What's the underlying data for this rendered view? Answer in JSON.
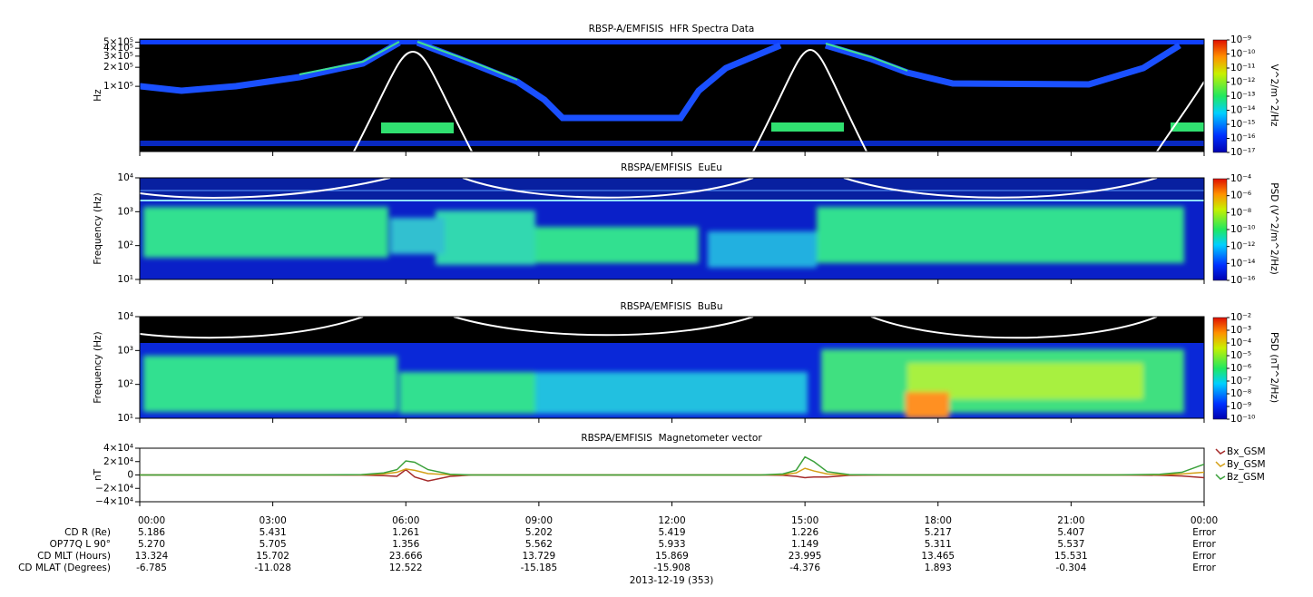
{
  "time_axis": {
    "xlim": [
      0,
      24
    ],
    "xticks": [
      {
        "value": 0,
        "label": "00:00"
      },
      {
        "value": 3,
        "label": "03:00"
      },
      {
        "value": 6,
        "label": "06:00"
      },
      {
        "value": 9,
        "label": "09:00"
      },
      {
        "value": 12,
        "label": "12:00"
      },
      {
        "value": 15,
        "label": "15:00"
      },
      {
        "value": 18,
        "label": "18:00"
      },
      {
        "value": 21,
        "label": "21:00"
      },
      {
        "value": 24,
        "label": "00:00"
      }
    ],
    "date_label": "2013-12-19 (353)"
  },
  "chart_data": [
    {
      "type": "spectrogram",
      "title": "RBSP-A/EMFISIS  HFR Spectra Data",
      "y_label": "Hz",
      "log_y": true,
      "ylim": [
        9300,
        560000
      ],
      "yticks": [
        {
          "value": 100000,
          "label": "1×10⁵"
        },
        {
          "value": 200000,
          "label": "2×10⁵"
        },
        {
          "value": 300000,
          "label": "3×10⁵"
        },
        {
          "value": 400000,
          "label": "4×10⁵"
        },
        {
          "value": 500000,
          "label": "5×10⁵"
        }
      ],
      "colorbar": {
        "label": "V^2/m^2/Hz",
        "log": true,
        "clim": [
          1e-17,
          1e-09
        ],
        "ticks": [
          {
            "value": 1e-09,
            "label": "10⁻⁹"
          },
          {
            "value": 1e-10,
            "label": "10⁻¹⁰"
          },
          {
            "value": 1e-11,
            "label": "10⁻¹¹"
          },
          {
            "value": 1e-12,
            "label": "10⁻¹²"
          },
          {
            "value": 1e-13,
            "label": "10⁻¹³"
          },
          {
            "value": 1e-14,
            "label": "10⁻¹⁴"
          },
          {
            "value": 1e-15,
            "label": "10⁻¹⁵"
          },
          {
            "value": 1e-16,
            "label": "10⁻¹⁶"
          },
          {
            "value": 1e-17,
            "label": "10⁻¹⁷"
          }
        ]
      }
    },
    {
      "type": "spectrogram",
      "title": "RBSPA/EMFISIS  EuEu",
      "y_label": "Frequency (Hz)",
      "log_y": true,
      "ylim": [
        10,
        10000
      ],
      "yticks": [
        {
          "value": 10,
          "label": "10¹"
        },
        {
          "value": 100,
          "label": "10²"
        },
        {
          "value": 1000,
          "label": "10³"
        },
        {
          "value": 10000,
          "label": "10⁴"
        }
      ],
      "colorbar": {
        "label": "PSD (V^2/m^2/Hz)",
        "log": true,
        "clim": [
          1e-16,
          0.0001
        ],
        "ticks": [
          {
            "value": 0.0001,
            "label": "10⁻⁴"
          },
          {
            "value": 1e-06,
            "label": "10⁻⁶"
          },
          {
            "value": 1e-08,
            "label": "10⁻⁸"
          },
          {
            "value": 1e-10,
            "label": "10⁻¹⁰"
          },
          {
            "value": 1e-12,
            "label": "10⁻¹²"
          },
          {
            "value": 1e-14,
            "label": "10⁻¹⁴"
          },
          {
            "value": 1e-16,
            "label": "10⁻¹⁶"
          }
        ]
      }
    },
    {
      "type": "spectrogram",
      "title": "RBSPA/EMFISIS  BuBu",
      "y_label": "Frequency (Hz)",
      "log_y": true,
      "ylim": [
        10,
        10000
      ],
      "yticks": [
        {
          "value": 10,
          "label": "10¹"
        },
        {
          "value": 100,
          "label": "10²"
        },
        {
          "value": 1000,
          "label": "10³"
        },
        {
          "value": 10000,
          "label": "10⁴"
        }
      ],
      "colorbar": {
        "label": "PSD (nT^2/Hz)",
        "log": true,
        "clim": [
          1e-10,
          0.01
        ],
        "ticks": [
          {
            "value": 0.01,
            "label": "10⁻²"
          },
          {
            "value": 0.001,
            "label": "10⁻³"
          },
          {
            "value": 0.0001,
            "label": "10⁻⁴"
          },
          {
            "value": 1e-05,
            "label": "10⁻⁵"
          },
          {
            "value": 1e-06,
            "label": "10⁻⁶"
          },
          {
            "value": 1e-07,
            "label": "10⁻⁷"
          },
          {
            "value": 1e-08,
            "label": "10⁻⁸"
          },
          {
            "value": 1e-09,
            "label": "10⁻⁹"
          },
          {
            "value": 1e-10,
            "label": "10⁻¹⁰"
          }
        ]
      }
    },
    {
      "type": "line",
      "title": "RBSPA/EMFISIS  Magnetometer vector",
      "y_label": "nT",
      "ylim": [
        -40000,
        40000
      ],
      "yticks": [
        {
          "value": -40000,
          "label": "−4×10⁴"
        },
        {
          "value": -20000,
          "label": "−2×10⁴"
        },
        0,
        {
          "value": 20000,
          "label": "2×10⁴"
        },
        {
          "value": 40000,
          "label": "4×10⁴"
        }
      ],
      "legend": "right",
      "x": [
        0,
        4,
        5,
        5.5,
        5.8,
        6,
        6.2,
        6.5,
        7,
        7.5,
        8,
        12,
        14,
        14.5,
        14.8,
        15,
        15.2,
        15.5,
        16,
        17,
        20,
        22,
        23,
        23.5,
        24
      ],
      "series": [
        {
          "name": "Bx_GSM",
          "color": "#a52a2a",
          "values": [
            0,
            0,
            -200,
            -1000,
            -2000,
            8000,
            -3000,
            -9000,
            -2000,
            0,
            0,
            0,
            0,
            -500,
            -2000,
            -4000,
            -3000,
            -3000,
            -500,
            0,
            0,
            0,
            -500,
            -1500,
            -4000
          ]
        },
        {
          "name": "By_GSM",
          "color": "#d4a017",
          "values": [
            0,
            0,
            200,
            1500,
            4000,
            9000,
            7000,
            2000,
            300,
            0,
            0,
            0,
            0,
            500,
            3000,
            10000,
            6000,
            1500,
            200,
            0,
            0,
            0,
            300,
            1500,
            4000
          ]
        },
        {
          "name": "Bz_GSM",
          "color": "#3aa03a",
          "values": [
            0,
            0,
            500,
            3000,
            8000,
            21000,
            19000,
            8000,
            1000,
            0,
            0,
            0,
            0,
            1500,
            7000,
            27000,
            20000,
            5000,
            500,
            0,
            0,
            0,
            1000,
            4000,
            16000
          ]
        }
      ]
    }
  ],
  "ephemeris": [
    {
      "label": "CD R (Re)",
      "values": [
        "5.186",
        "5.431",
        "1.261",
        "5.202",
        "5.419",
        "1.226",
        "5.217",
        "5.407",
        "Error"
      ]
    },
    {
      "label": "OP77Q L 90°",
      "values": [
        "5.270",
        "5.705",
        "1.356",
        "5.562",
        "5.933",
        "1.149",
        "5.311",
        "5.537",
        "Error"
      ]
    },
    {
      "label": "CD MLT (Hours)",
      "values": [
        "13.324",
        "15.702",
        "23.666",
        "13.729",
        "15.869",
        "23.995",
        "13.465",
        "15.531",
        "Error"
      ]
    },
    {
      "label": "CD MLAT (Degrees)",
      "values": [
        "-6.785",
        "-11.028",
        "12.522",
        "-15.185",
        "-15.908",
        "-4.376",
        "1.893",
        "-0.304",
        "Error"
      ]
    }
  ]
}
